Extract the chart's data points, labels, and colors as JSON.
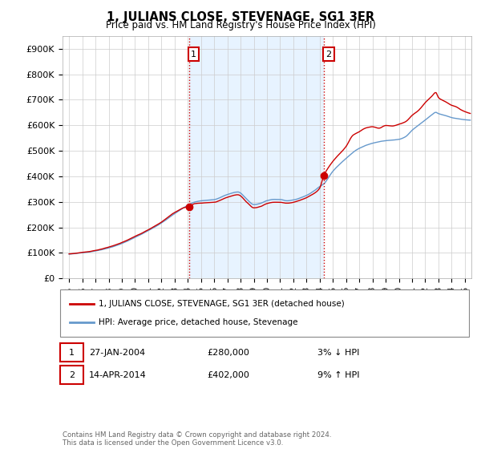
{
  "title": "1, JULIANS CLOSE, STEVENAGE, SG1 3ER",
  "subtitle": "Price paid vs. HM Land Registry's House Price Index (HPI)",
  "ylabel_ticks": [
    "£0",
    "£100K",
    "£200K",
    "£300K",
    "£400K",
    "£500K",
    "£600K",
    "£700K",
    "£800K",
    "£900K"
  ],
  "ytick_values": [
    0,
    100000,
    200000,
    300000,
    400000,
    500000,
    600000,
    700000,
    800000,
    900000
  ],
  "ylim": [
    0,
    950000
  ],
  "xlim_start": 1994.5,
  "xlim_end": 2025.5,
  "hpi_color": "#6699cc",
  "sale_color": "#cc0000",
  "vline_color": "#cc0000",
  "shade_color": "#ddeeff",
  "sale1_year": 2004.08,
  "sale1_price": 280000,
  "sale2_year": 2014.29,
  "sale2_price": 402000,
  "legend_label_sale": "1, JULIANS CLOSE, STEVENAGE, SG1 3ER (detached house)",
  "legend_label_hpi": "HPI: Average price, detached house, Stevenage",
  "annotation1_label": "1",
  "annotation1_date": "27-JAN-2004",
  "annotation1_price": "£280,000",
  "annotation1_hpi": "3% ↓ HPI",
  "annotation2_label": "2",
  "annotation2_date": "14-APR-2014",
  "annotation2_price": "£402,000",
  "annotation2_hpi": "9% ↑ HPI",
  "footnote": "Contains HM Land Registry data © Crown copyright and database right 2024.\nThis data is licensed under the Open Government Licence v3.0.",
  "bg_color": "#ffffff",
  "plot_bg_color": "#ffffff",
  "grid_color": "#cccccc"
}
